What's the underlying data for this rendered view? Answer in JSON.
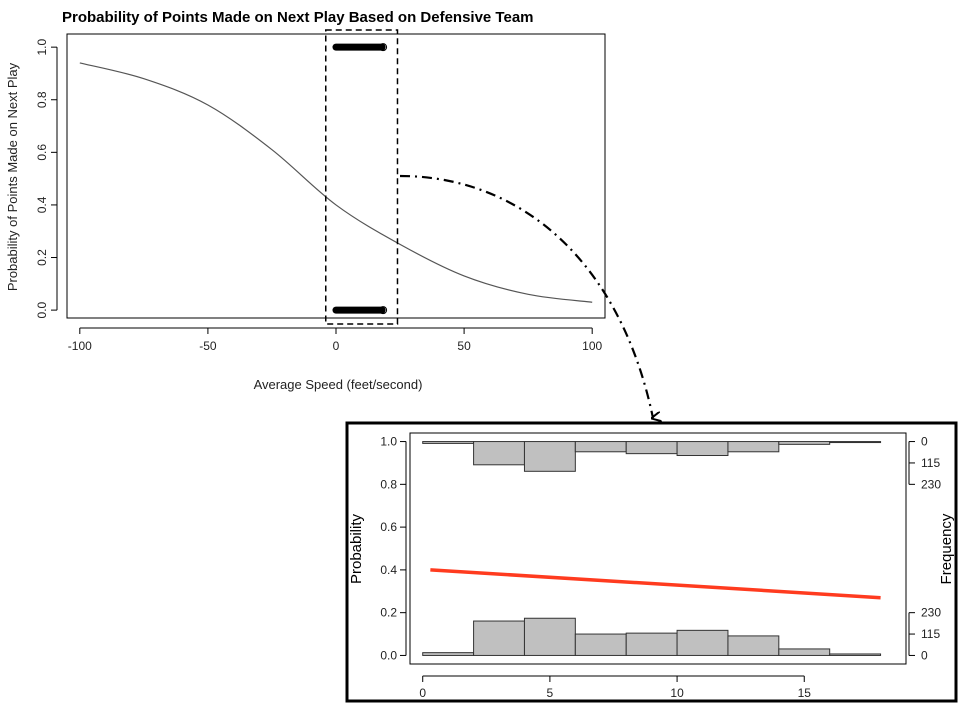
{
  "chart_data": [
    {
      "type": "line",
      "title": "Probability of Points Made on Next Play Based on Defensive Team",
      "xlabel": "Average Speed (feet/second)",
      "ylabel": "Probability of Points Made on Next Play",
      "xlim": [
        -105,
        105
      ],
      "ylim": [
        -0.03,
        1.05
      ],
      "xticks": [
        -100,
        -50,
        0,
        50,
        100
      ],
      "yticks": [
        0.0,
        0.2,
        0.4,
        0.6,
        0.8,
        1.0
      ],
      "xtick_labels": [
        "-100",
        "-50",
        "0",
        "50",
        "100"
      ],
      "ytick_labels": [
        "0.0",
        "0.2",
        "0.4",
        "0.6",
        "0.8",
        "1.0"
      ],
      "curve": {
        "type": "logistic",
        "x": [
          -100,
          -75,
          -50,
          -25,
          0,
          25,
          50,
          75,
          100
        ],
        "y": [
          0.94,
          0.88,
          0.78,
          0.61,
          0.4,
          0.25,
          0.13,
          0.06,
          0.03
        ]
      },
      "observations": [
        {
          "y": 1,
          "x_range": [
            0,
            18
          ]
        },
        {
          "y": 0,
          "x_range": [
            0,
            18
          ]
        }
      ],
      "highlight_region": {
        "x_range": [
          -4,
          24
        ]
      }
    },
    {
      "type": "line",
      "xlabel": "",
      "ylabel": "Probability",
      "y2label": "Frequency",
      "xlim": [
        -0.5,
        19
      ],
      "ylim": [
        -0.04,
        1.04
      ],
      "xticks": [
        0,
        5,
        10,
        15
      ],
      "yticks": [
        0.0,
        0.2,
        0.4,
        0.6,
        0.8,
        1.0
      ],
      "xtick_labels": [
        "0",
        "5",
        "10",
        "15"
      ],
      "ytick_labels": [
        "0.0",
        "0.2",
        "0.4",
        "0.6",
        "0.8",
        "1.0"
      ],
      "y2tick_labels_top": [
        "0",
        "115",
        "230"
      ],
      "y2tick_labels_bottom": [
        "230",
        "115",
        "0"
      ],
      "fit_line": {
        "x": [
          0.3,
          18
        ],
        "y": [
          0.4,
          0.27
        ],
        "color": "#ff3b1f"
      },
      "histogram_top": {
        "bins": [
          0,
          2,
          4,
          6,
          8,
          10,
          12,
          14,
          16,
          18
        ],
        "counts": [
          10,
          125,
          160,
          55,
          65,
          75,
          55,
          15,
          3
        ]
      },
      "histogram_bottom": {
        "bins": [
          0,
          2,
          4,
          6,
          8,
          10,
          12,
          14,
          16,
          18
        ],
        "counts": [
          15,
          185,
          200,
          115,
          120,
          135,
          105,
          35,
          8
        ]
      },
      "frequency_max": 230
    }
  ],
  "colors": {
    "curve": "#555555",
    "fit_line": "#ff3b1f",
    "bar_fill": "#c0c0c0",
    "frame": "#000000"
  }
}
